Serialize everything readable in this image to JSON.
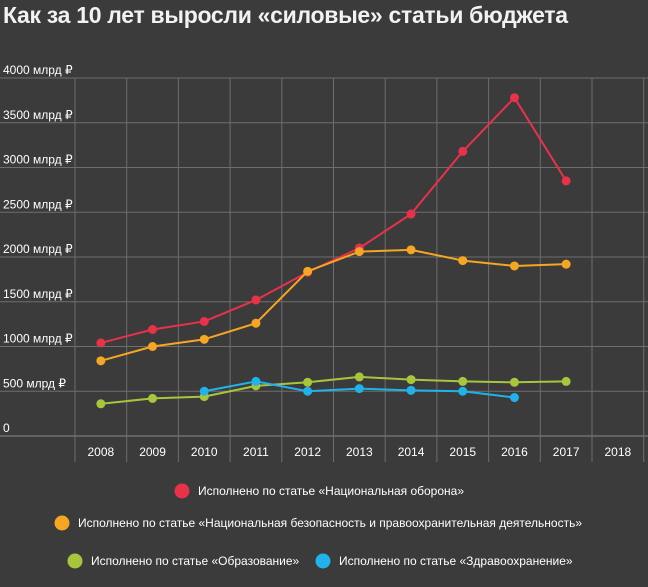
{
  "chart_data": {
    "type": "line",
    "title": "Как за 10 лет выросли «силовые» статьи бюджета",
    "y_tick_labels": [
      "0",
      "500 млрд ₽",
      "1000 млрд ₽",
      "1500 млрд ₽",
      "2000 млрд ₽",
      "2500 млрд ₽",
      "3000 млрд ₽",
      "3500 млрд ₽",
      "4000 млрд ₽"
    ],
    "y_ticks": [
      0,
      500,
      1000,
      1500,
      2000,
      2500,
      3000,
      3500,
      4000
    ],
    "ylim": [
      0,
      4000
    ],
    "x_categories": [
      "2008",
      "2009",
      "2010",
      "2011",
      "2012",
      "2013",
      "2014",
      "2015",
      "2016",
      "2017",
      "2018"
    ],
    "grid": true,
    "legend_position": "bottom",
    "series": [
      {
        "name": "Исполнено по статье «Национальная оборона»",
        "color": "#e8324a",
        "x": [
          "2008",
          "2009",
          "2010",
          "2011",
          "2012",
          "2013",
          "2014",
          "2015",
          "2016",
          "2017"
        ],
        "values": [
          1040,
          1190,
          1280,
          1520,
          1830,
          2100,
          2480,
          3180,
          3780,
          2850
        ]
      },
      {
        "name": "Исполнено по статье «Национальная безопасность и правоохранительная деятельность»",
        "color": "#f5a623",
        "x": [
          "2008",
          "2009",
          "2010",
          "2011",
          "2012",
          "2013",
          "2014",
          "2015",
          "2016",
          "2017"
        ],
        "values": [
          840,
          1000,
          1080,
          1260,
          1840,
          2060,
          2080,
          1960,
          1900,
          1920
        ]
      },
      {
        "name": "Исполнено по статье «Образование»",
        "color": "#a8c63c",
        "x": [
          "2008",
          "2009",
          "2010",
          "2011",
          "2012",
          "2013",
          "2014",
          "2015",
          "2016",
          "2017"
        ],
        "values": [
          360,
          420,
          440,
          560,
          600,
          660,
          630,
          610,
          600,
          610
        ]
      },
      {
        "name": "Исполнено по статье «Здравоохранение»",
        "color": "#1fb3ea",
        "x": [
          "2010",
          "2011",
          "2012",
          "2013",
          "2014",
          "2015",
          "2016"
        ],
        "values": [
          500,
          610,
          500,
          530,
          510,
          500,
          430
        ]
      }
    ]
  }
}
